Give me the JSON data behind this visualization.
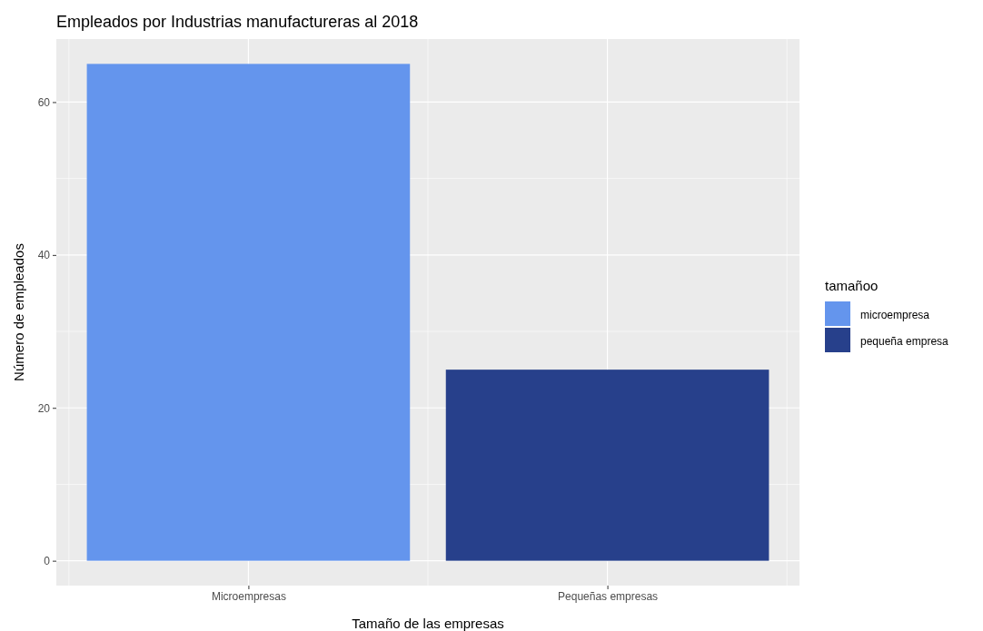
{
  "chart_data": {
    "type": "bar",
    "title": "Empleados por Industrias manufactureras al 2018",
    "xlabel": "Tamaño de las empresas",
    "ylabel": "Número de empleados",
    "legend_title": "tamañoo",
    "categories": [
      "Microempresas",
      "Pequeñas empresas"
    ],
    "series": [
      {
        "name": "microempresa",
        "color": "#6495ed",
        "values": [
          65,
          null
        ]
      },
      {
        "name": "pequeña empresa",
        "color": "#27408b",
        "values": [
          null,
          25
        ]
      }
    ],
    "ylim": [
      -3.25,
      68.25
    ],
    "yticks": [
      0,
      20,
      40,
      60
    ],
    "grid": true,
    "legend": "right"
  }
}
